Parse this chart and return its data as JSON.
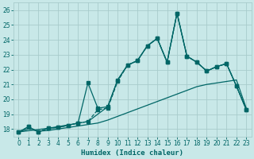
{
  "xlabel": "Humidex (Indice chaleur)",
  "xlim": [
    -0.5,
    23.5
  ],
  "ylim": [
    17.5,
    26.5
  ],
  "bg_color": "#c8e8e8",
  "grid_color": "#a8cccc",
  "line_color": "#006666",
  "series": {
    "line_dashed_marker": {
      "x": [
        0,
        1,
        2,
        3,
        4,
        5,
        6,
        7,
        8,
        9,
        10,
        11,
        12,
        13,
        14,
        15,
        16,
        17,
        18,
        19,
        20,
        21,
        22,
        23
      ],
      "y": [
        17.8,
        18.15,
        17.8,
        18.05,
        18.1,
        18.25,
        18.4,
        18.5,
        19.3,
        19.4,
        21.2,
        22.3,
        22.6,
        23.6,
        24.1,
        22.5,
        25.8,
        22.9,
        22.5,
        21.9,
        22.2,
        22.4,
        20.9,
        19.3
      ]
    },
    "line_solid_marker": {
      "x": [
        0,
        1,
        2,
        3,
        4,
        5,
        6,
        7,
        8,
        9,
        10,
        11,
        12,
        13,
        14,
        15,
        16,
        17,
        18,
        19,
        20,
        21,
        22,
        23
      ],
      "y": [
        17.8,
        18.15,
        17.8,
        18.05,
        18.1,
        18.25,
        18.4,
        21.1,
        19.4,
        19.5,
        21.3,
        22.3,
        22.6,
        23.6,
        24.1,
        22.5,
        25.8,
        22.9,
        22.5,
        21.9,
        22.2,
        22.4,
        20.9,
        19.3
      ]
    },
    "line_solid_upper": {
      "x": [
        0,
        3,
        7,
        9,
        10,
        11,
        12,
        13,
        14,
        15,
        16,
        17,
        18,
        19,
        20,
        21,
        22,
        23
      ],
      "y": [
        17.8,
        18.05,
        18.5,
        19.5,
        21.3,
        22.3,
        22.6,
        23.6,
        24.1,
        22.5,
        25.8,
        22.9,
        22.5,
        21.9,
        22.2,
        22.4,
        20.9,
        19.3
      ]
    },
    "line_solid_lower": {
      "x": [
        0,
        1,
        2,
        3,
        4,
        5,
        6,
        7,
        8,
        9,
        10,
        11,
        12,
        13,
        14,
        15,
        16,
        17,
        18,
        19,
        20,
        21,
        22,
        23
      ],
      "y": [
        17.8,
        18.0,
        17.85,
        17.9,
        18.0,
        18.1,
        18.2,
        18.3,
        18.4,
        18.6,
        18.85,
        19.1,
        19.35,
        19.6,
        19.85,
        20.1,
        20.35,
        20.6,
        20.85,
        21.0,
        21.1,
        21.2,
        21.3,
        19.4
      ]
    }
  },
  "yticks": [
    18,
    19,
    20,
    21,
    22,
    23,
    24,
    25,
    26
  ],
  "xticks": [
    0,
    1,
    2,
    3,
    4,
    5,
    6,
    7,
    8,
    9,
    10,
    11,
    12,
    13,
    14,
    15,
    16,
    17,
    18,
    19,
    20,
    21,
    22,
    23
  ]
}
